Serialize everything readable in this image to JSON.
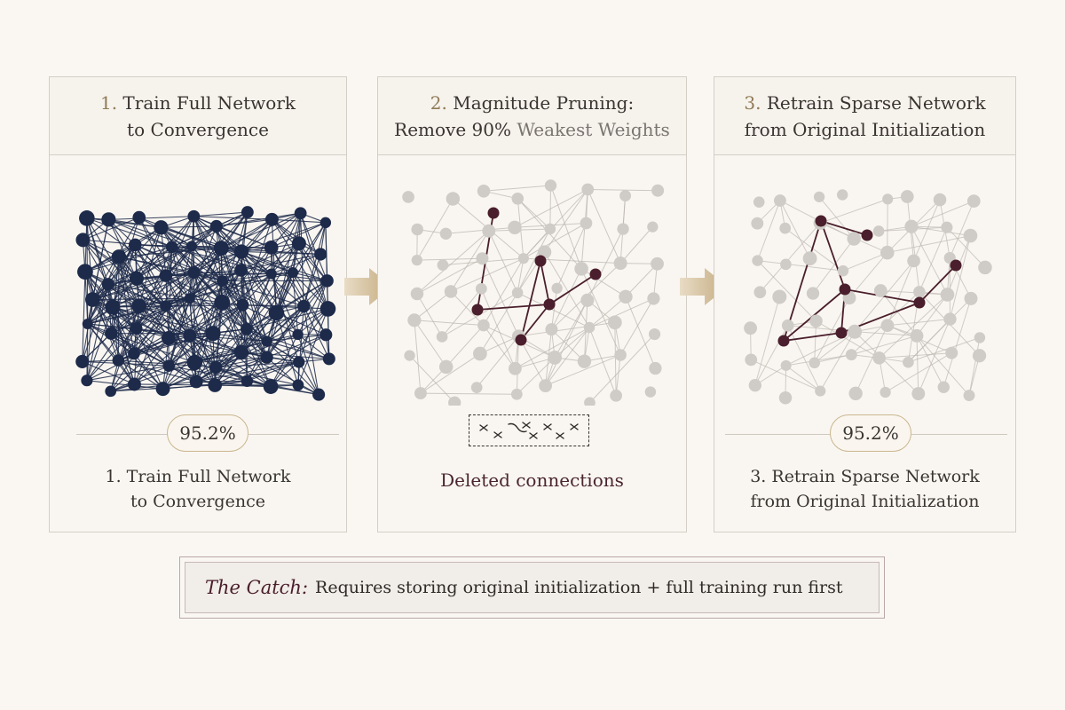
{
  "steps": [
    {
      "header": {
        "num": "1.",
        "line1": "Train Full Network",
        "line2": "to Convergence"
      },
      "accuracy": "95.2%",
      "footer": {
        "line1": "1. Train Full Network",
        "line2": "to Convergence"
      }
    },
    {
      "header": {
        "num": "2.",
        "line1": "Magnitude Pruning:",
        "line2a": "Remove 90%",
        "line2b": " Weakest Weights"
      },
      "footer": {
        "line1": "Deleted connections"
      }
    },
    {
      "header": {
        "num": "3.",
        "line1": "Retrain Sparse Network",
        "line2": "from Original Initialization"
      },
      "accuracy": "95.2%",
      "footer": {
        "line1": "3. Retrain Sparse Network",
        "line2": "from Original Initialization"
      }
    }
  ],
  "catch": {
    "label": "The Catch:",
    "text": "Requires storing original initialization + full training run first"
  },
  "colors": {
    "dense_node": "#1d2a4a",
    "faded_node": "#cfcbc6",
    "highlight": "#4a1e2c",
    "arrow": "#c8b38a"
  }
}
